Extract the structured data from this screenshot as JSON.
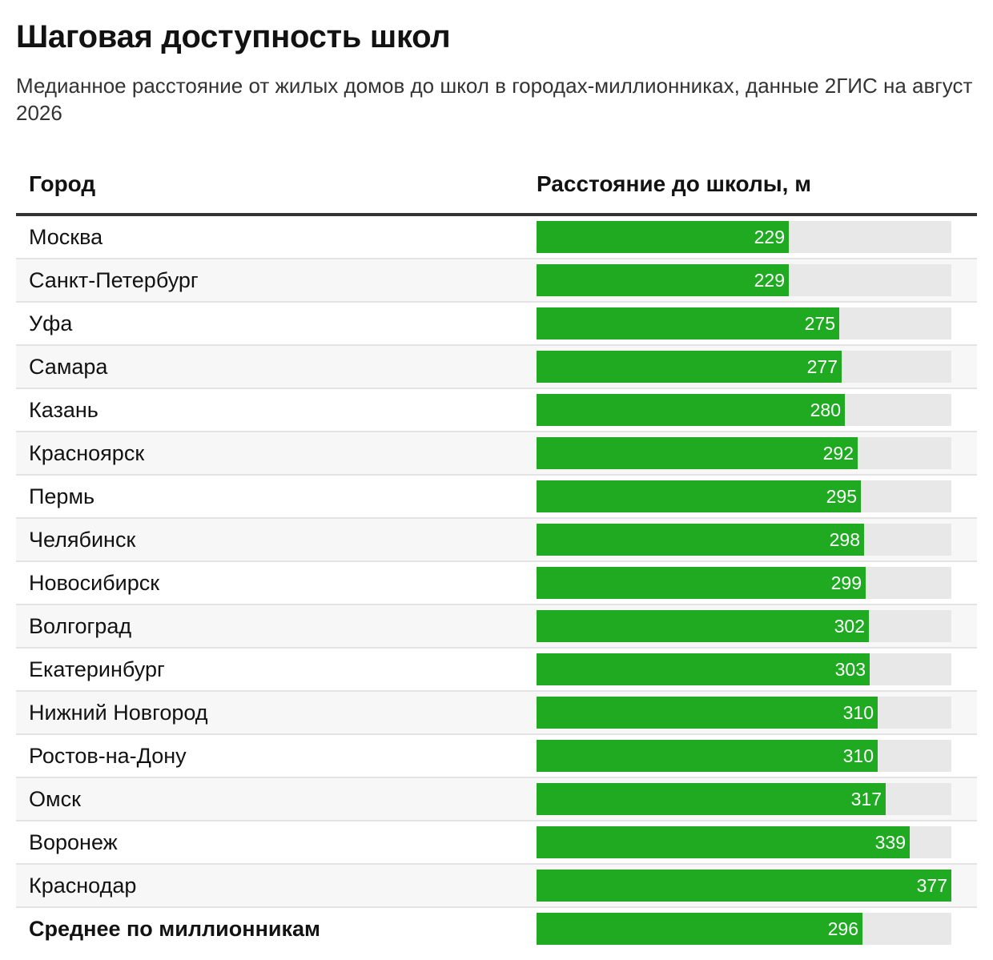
{
  "title": "Шаговая доступность школ",
  "subtitle": "Медианное расстояние от жилых домов до школ в городах-миллионниках, данные 2ГИС на август 2026",
  "table": {
    "col_city": "Город",
    "col_distance": "Расстояние до школы, м"
  },
  "colors": {
    "bar": "#1faa22",
    "track": "#e8e8e8",
    "header_rule": "#333333"
  },
  "chart_data": {
    "type": "bar",
    "orientation": "horizontal",
    "title": "Шаговая доступность школ",
    "subtitle": "Медианное расстояние от жилых домов до школ в городах-миллионниках, данные 2ГИС на август 2026",
    "xlabel": "Расстояние до школы, м",
    "ylabel": "Город",
    "xlim": [
      0,
      377
    ],
    "categories": [
      "Москва",
      "Санкт-Петербург",
      "Уфа",
      "Самара",
      "Казань",
      "Красноярск",
      "Пермь",
      "Челябинск",
      "Новосибирск",
      "Волгоград",
      "Екатеринбург",
      "Нижний Новгород",
      "Ростов-на-Дону",
      "Омск",
      "Воронеж",
      "Краснодар",
      "Среднее по миллионникам"
    ],
    "values": [
      229,
      229,
      275,
      277,
      280,
      292,
      295,
      298,
      299,
      302,
      303,
      310,
      310,
      317,
      339,
      377,
      296
    ],
    "grid": false,
    "legend": "none"
  }
}
